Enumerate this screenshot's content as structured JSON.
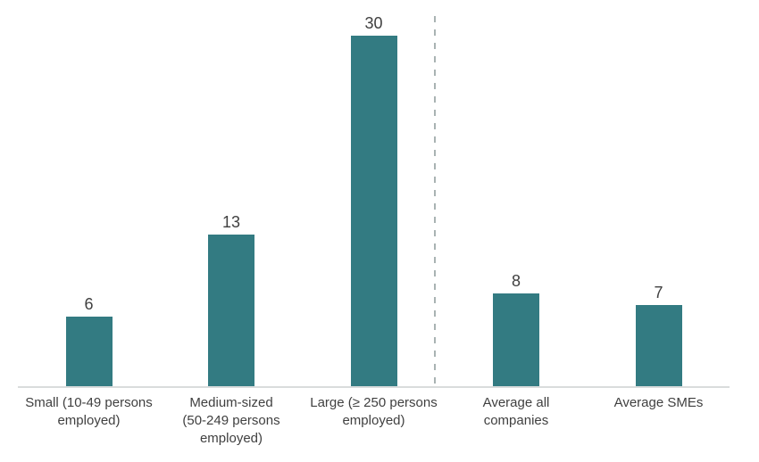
{
  "chart_data": {
    "type": "bar",
    "title": "",
    "xlabel": "",
    "ylabel": "",
    "ylim": [
      0,
      30
    ],
    "grid": false,
    "legend": false,
    "categories": [
      "Small (10-49 persons employed)",
      "Medium-sized (50-249 persons employed)",
      "Large (≥ 250 persons employed)",
      "Average all companies",
      "Average SMEs"
    ],
    "category_display_lines": [
      [
        "Small (10-49 persons",
        "employed)"
      ],
      [
        "Medium-sized",
        "(50-249 persons",
        "employed)"
      ],
      [
        "Large (≥ 250 persons",
        "employed)"
      ],
      [
        "Average all",
        "companies"
      ],
      [
        "Average SMEs"
      ]
    ],
    "values": [
      6,
      13,
      30,
      8,
      7
    ],
    "data_labels": [
      "6",
      "13",
      "30",
      "8",
      "7"
    ],
    "separator": {
      "style": "dashed-vertical-line",
      "between_categories": [
        "Large (≥ 250 persons employed)",
        "Average all companies"
      ],
      "after_index": 2
    },
    "colors": {
      "bar": "#337B82",
      "label_text": "#404040",
      "axis_line": "#D9DCDC",
      "separator_line": "#A9B3B3",
      "background": "#FFFFFF"
    }
  }
}
